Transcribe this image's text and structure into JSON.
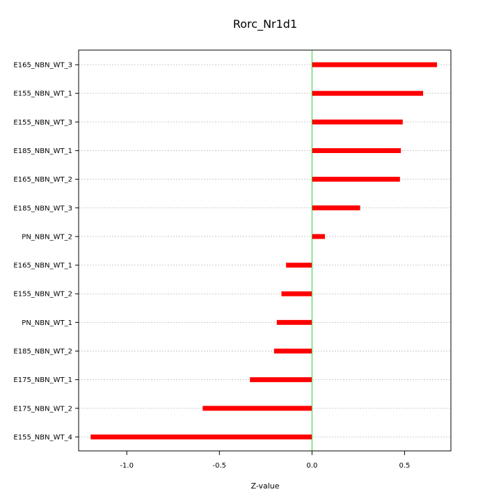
{
  "chart_data": {
    "type": "bar",
    "orientation": "horizontal",
    "title": "Rorc_Nr1d1",
    "xlabel": "Z-value",
    "ylabel": "",
    "xlim": [
      -1.26,
      0.75
    ],
    "x_ticks": [
      -1.0,
      -0.5,
      0.0,
      0.5
    ],
    "x_tick_labels": [
      "-1.0",
      "-0.5",
      "0.0",
      "0.5"
    ],
    "reference_line": {
      "value": 0,
      "color": "#33cc33"
    },
    "bar_color": "#ff0000",
    "gridlines": "horizontal dotted",
    "categories": [
      "E165_NBN_WT_3",
      "E155_NBN_WT_1",
      "E155_NBN_WT_3",
      "E185_NBN_WT_1",
      "E165_NBN_WT_2",
      "E185_NBN_WT_3",
      "PN_NBN_WT_2",
      "E165_NBN_WT_1",
      "E155_NBN_WT_2",
      "PN_NBN_WT_1",
      "E185_NBN_WT_2",
      "E175_NBN_WT_1",
      "E175_NBN_WT_2",
      "E155_NBN_WT_4"
    ],
    "values": [
      0.675,
      0.6,
      0.49,
      0.48,
      0.475,
      0.26,
      0.07,
      -0.14,
      -0.165,
      -0.19,
      -0.205,
      -0.335,
      -0.59,
      -1.195
    ]
  }
}
